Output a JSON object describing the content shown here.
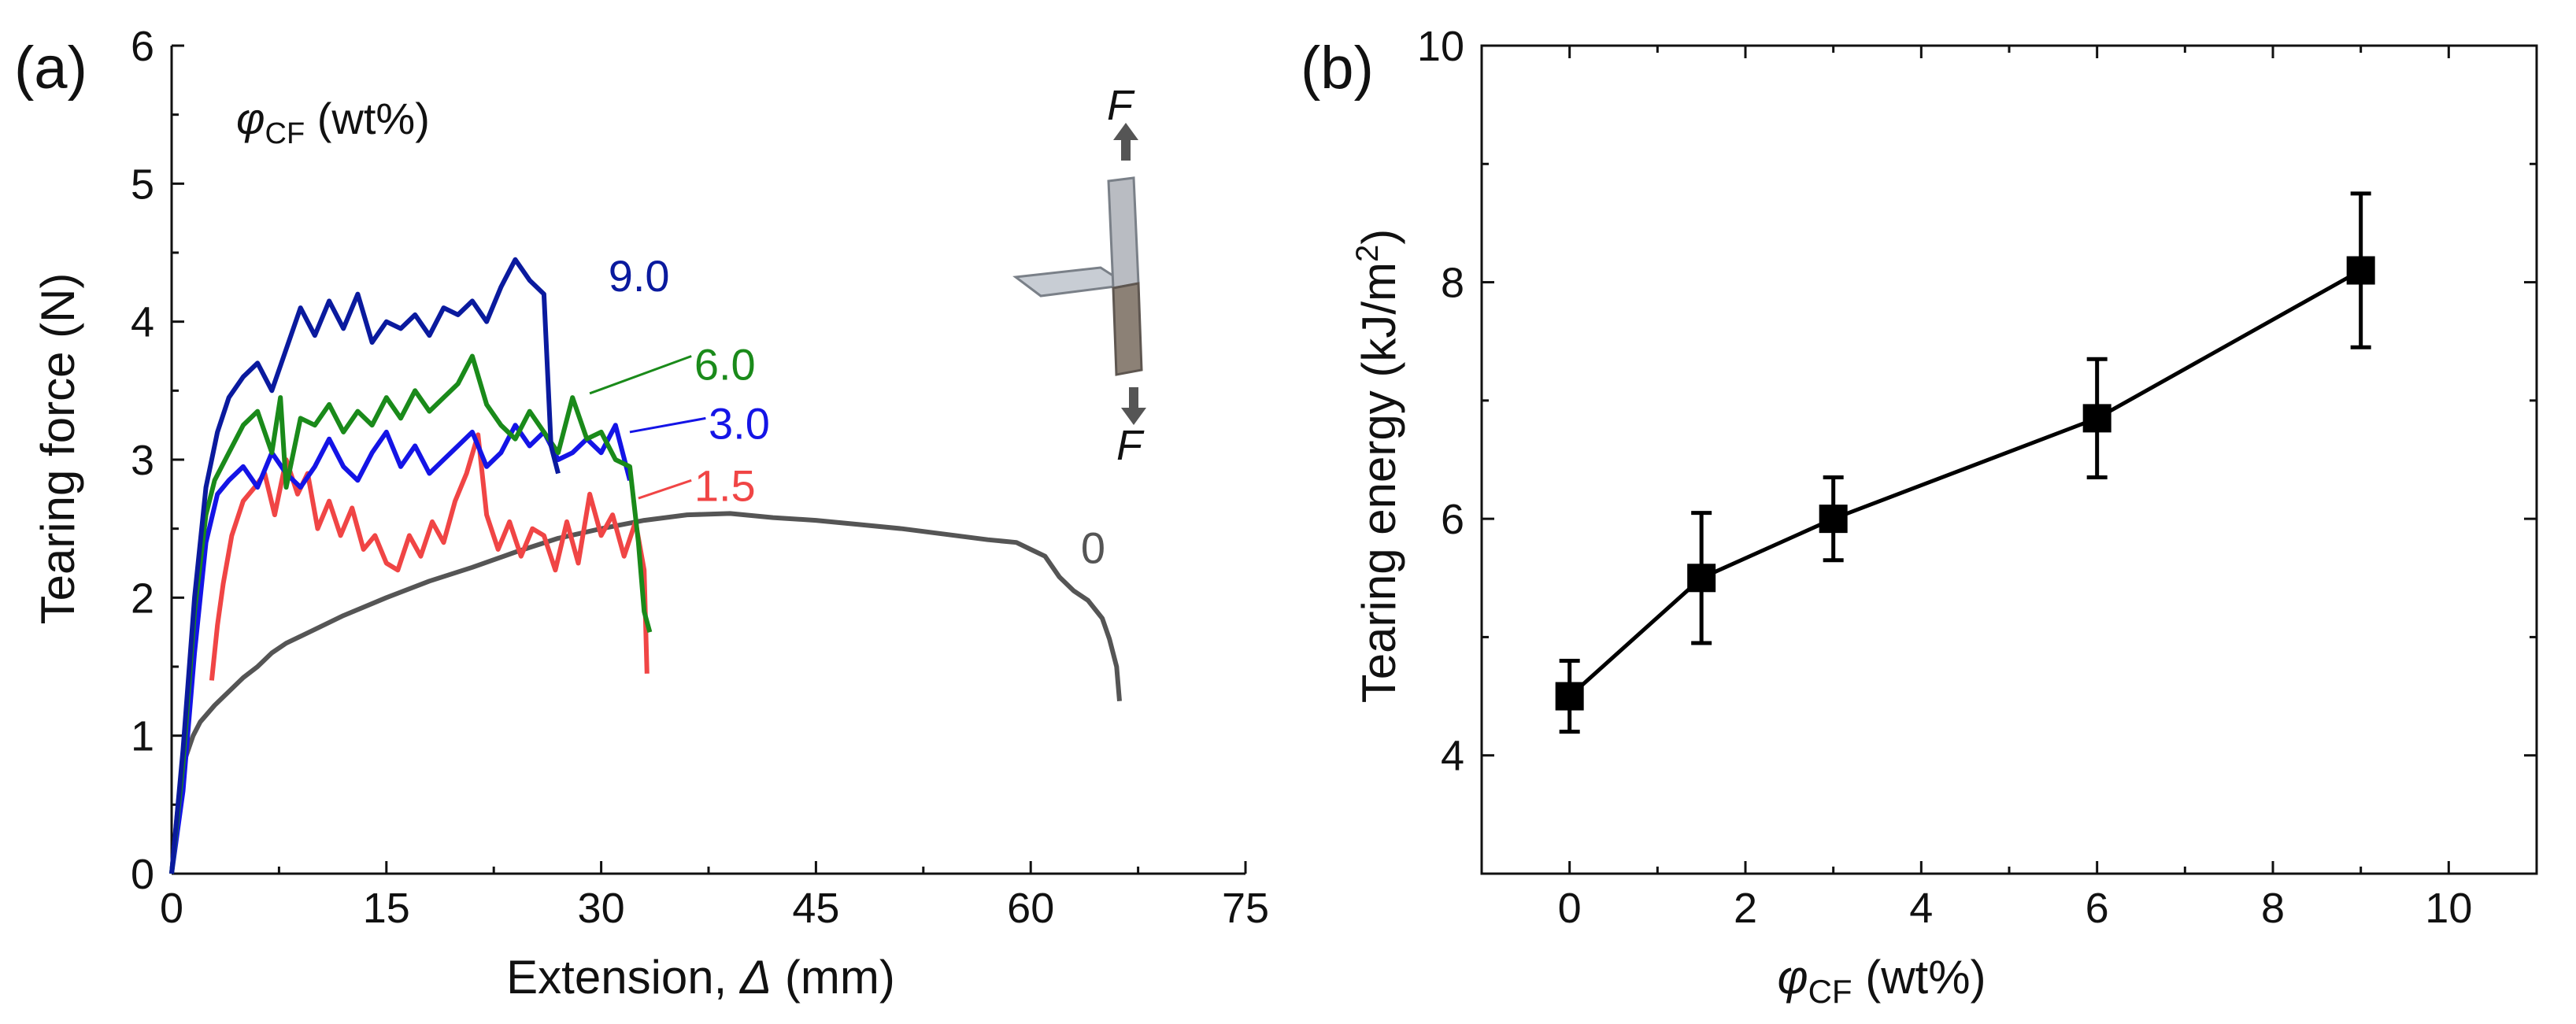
{
  "chart_data": [
    {
      "panel_label": "(a)",
      "type": "line",
      "xlabel_prefix": "Extension, ",
      "xlabel_symbol": "Δ",
      "xlabel_suffix": " (mm)",
      "ylabel": "Tearing force (N)",
      "xlim": [
        0,
        75
      ],
      "ylim": [
        0,
        6
      ],
      "xticks": [
        "0",
        "15",
        "30",
        "45",
        "60",
        "75"
      ],
      "yticks": [
        "0",
        "1",
        "2",
        "3",
        "4",
        "5",
        "6"
      ],
      "legend_title_symbol": "φ",
      "legend_title_sub": "CF",
      "legend_title_unit": " (wt%)",
      "inset_force_top": "F",
      "inset_force_bottom": "F",
      "series": [
        {
          "name": "0",
          "color": "#555555",
          "x": [
            0,
            0.5,
            1,
            1.5,
            2,
            3,
            4,
            5,
            6,
            7,
            8,
            10,
            12,
            15,
            18,
            21,
            24,
            27,
            30,
            33,
            36,
            39,
            42,
            45,
            48,
            51,
            54,
            57,
            59,
            60,
            61,
            62,
            63,
            64,
            65,
            65.5,
            66,
            66.2
          ],
          "y": [
            0,
            0.55,
            0.85,
            1.0,
            1.1,
            1.22,
            1.32,
            1.42,
            1.5,
            1.6,
            1.67,
            1.77,
            1.87,
            2.0,
            2.12,
            2.22,
            2.33,
            2.43,
            2.5,
            2.56,
            2.6,
            2.61,
            2.58,
            2.56,
            2.53,
            2.5,
            2.46,
            2.42,
            2.4,
            2.35,
            2.3,
            2.15,
            2.05,
            1.98,
            1.85,
            1.7,
            1.5,
            1.25
          ]
        },
        {
          "name": "1.5",
          "color": "#f04545",
          "x": [
            2.8,
            3.2,
            3.6,
            4.2,
            5.0,
            5.8,
            6.5,
            7.2,
            8.0,
            8.8,
            9.5,
            10.2,
            11.0,
            11.8,
            12.6,
            13.4,
            14.2,
            15.0,
            15.8,
            16.6,
            17.4,
            18.2,
            19.0,
            19.8,
            20.6,
            21.4,
            22.0,
            22.8,
            23.6,
            24.4,
            25.2,
            26.0,
            26.8,
            27.6,
            28.4,
            29.2,
            30.0,
            30.8,
            31.6,
            32.4,
            33.0,
            33.2
          ],
          "y": [
            1.4,
            1.8,
            2.1,
            2.45,
            2.7,
            2.8,
            2.9,
            2.6,
            3.0,
            2.75,
            2.9,
            2.5,
            2.7,
            2.45,
            2.65,
            2.35,
            2.45,
            2.25,
            2.2,
            2.45,
            2.3,
            2.55,
            2.4,
            2.7,
            2.9,
            3.18,
            2.6,
            2.35,
            2.55,
            2.3,
            2.5,
            2.45,
            2.2,
            2.55,
            2.25,
            2.75,
            2.45,
            2.6,
            2.3,
            2.55,
            2.2,
            1.45
          ]
        },
        {
          "name": "3.0",
          "color": "#1414e6",
          "x": [
            0,
            0.8,
            1.6,
            2.4,
            3.2,
            4.0,
            5.0,
            6.0,
            7.0,
            8.0,
            9.0,
            10.0,
            11.0,
            12.0,
            13.0,
            14.0,
            15.0,
            16.0,
            17.0,
            18.0,
            19.0,
            20.0,
            21.0,
            22.0,
            23.0,
            24.0,
            25.0,
            26.0,
            27.0,
            28.0,
            29.0,
            30.0,
            31.0,
            32.0
          ],
          "y": [
            0,
            0.6,
            1.6,
            2.4,
            2.75,
            2.85,
            2.95,
            2.8,
            3.05,
            2.9,
            2.8,
            2.95,
            3.15,
            2.95,
            2.85,
            3.05,
            3.2,
            2.95,
            3.1,
            2.9,
            3.0,
            3.1,
            3.2,
            2.95,
            3.05,
            3.25,
            3.1,
            3.2,
            3.0,
            3.05,
            3.15,
            3.05,
            3.25,
            2.85
          ]
        },
        {
          "name": "6.0",
          "color": "#1a8a1a",
          "x": [
            0,
            0.8,
            1.6,
            2.4,
            3.0,
            4.0,
            5.0,
            6.0,
            7.0,
            7.6,
            8.0,
            9.0,
            10.0,
            11.0,
            12.0,
            13.0,
            14.0,
            15.0,
            16.0,
            17.0,
            18.0,
            19.0,
            20.0,
            21.0,
            22.0,
            23.0,
            24.0,
            25.0,
            26.0,
            27.0,
            28.0,
            29.0,
            30.0,
            31.0,
            32.0,
            32.6,
            33.0,
            33.4
          ],
          "y": [
            0,
            0.8,
            1.9,
            2.6,
            2.85,
            3.05,
            3.25,
            3.35,
            3.05,
            3.45,
            2.8,
            3.3,
            3.25,
            3.4,
            3.2,
            3.35,
            3.25,
            3.45,
            3.3,
            3.5,
            3.35,
            3.45,
            3.55,
            3.75,
            3.4,
            3.25,
            3.15,
            3.35,
            3.2,
            3.05,
            3.45,
            3.15,
            3.2,
            3.0,
            2.95,
            2.4,
            1.9,
            1.75
          ]
        },
        {
          "name": "9.0",
          "color": "#0a1a9e",
          "x": [
            0,
            0.8,
            1.6,
            2.4,
            3.2,
            4.0,
            5.0,
            6.0,
            7.0,
            8.0,
            9.0,
            10.0,
            11.0,
            12.0,
            13.0,
            14.0,
            15.0,
            16.0,
            17.0,
            18.0,
            19.0,
            20.0,
            21.0,
            22.0,
            23.0,
            24.0,
            25.0,
            26.0,
            26.5,
            27.0
          ],
          "y": [
            0,
            0.9,
            2.0,
            2.8,
            3.2,
            3.45,
            3.6,
            3.7,
            3.5,
            3.8,
            4.1,
            3.9,
            4.15,
            3.95,
            4.2,
            3.85,
            4.0,
            3.95,
            4.05,
            3.9,
            4.1,
            4.05,
            4.15,
            4.0,
            4.25,
            4.45,
            4.3,
            4.2,
            3.1,
            2.9
          ]
        }
      ],
      "curve_labels": [
        {
          "series": "0",
          "label": "0",
          "color": "#555555",
          "x": 63.5,
          "y": 2.25
        },
        {
          "series": "1.5",
          "label": "1.5",
          "color": "#f04545",
          "x": 36.5,
          "y": 2.7
        },
        {
          "series": "3.0",
          "label": "3.0",
          "color": "#1414e6",
          "x": 37.5,
          "y": 3.15
        },
        {
          "series": "6.0",
          "label": "6.0",
          "color": "#1a8a1a",
          "x": 36.5,
          "y": 3.58
        },
        {
          "series": "9.0",
          "label": "9.0",
          "color": "#0a1a9e",
          "x": 30.5,
          "y": 4.22
        }
      ]
    },
    {
      "panel_label": "(b)",
      "type": "line",
      "marker": "square",
      "xlabel_symbol": "φ",
      "xlabel_sub": "CF",
      "xlabel_unit": " (wt%)",
      "ylabel_main": "Tearing energy (kJ/m",
      "ylabel_sup": "2",
      "ylabel_close": ")",
      "xlim": [
        -1,
        11
      ],
      "ylim": [
        3,
        10
      ],
      "xticks": [
        "0",
        "2",
        "4",
        "6",
        "8",
        "10"
      ],
      "yticks": [
        "4",
        "6",
        "8",
        "10"
      ],
      "color": "#000000",
      "x": [
        0,
        1.5,
        3,
        6,
        9
      ],
      "y": [
        4.5,
        5.5,
        6.0,
        6.85,
        8.1
      ],
      "yerr": [
        0.3,
        0.55,
        0.35,
        0.5,
        0.65
      ]
    }
  ]
}
